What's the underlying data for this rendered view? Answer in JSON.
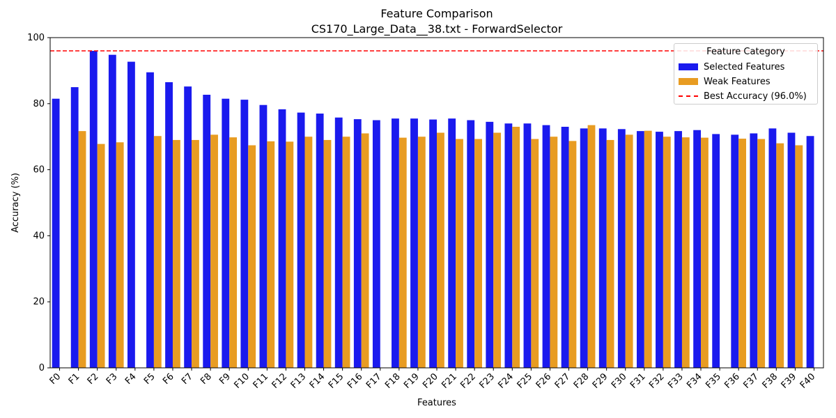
{
  "chart_data": {
    "type": "bar",
    "title": "Feature Comparison",
    "subtitle": "CS170_Large_Data__38.txt - ForwardSelector",
    "xlabel": "Features",
    "ylabel": "Accuracy (%)",
    "ylim": [
      0,
      100
    ],
    "yticks": [
      0,
      20,
      40,
      60,
      80,
      100
    ],
    "grid": false,
    "legend_position": "top-right",
    "legend_title": "Feature Category",
    "categories": [
      "F0",
      "F1",
      "F2",
      "F3",
      "F4",
      "F5",
      "F6",
      "F7",
      "F8",
      "F9",
      "F10",
      "F11",
      "F12",
      "F13",
      "F14",
      "F15",
      "F16",
      "F17",
      "F18",
      "F19",
      "F20",
      "F21",
      "F22",
      "F23",
      "F24",
      "F25",
      "F26",
      "F27",
      "F28",
      "F29",
      "F30",
      "F31",
      "F32",
      "F33",
      "F34",
      "F35",
      "F36",
      "F37",
      "F38",
      "F39",
      "F40"
    ],
    "series": [
      {
        "name": "Selected Features",
        "color": "#1a1aee",
        "values": [
          81.5,
          85.0,
          96.0,
          94.8,
          92.7,
          89.5,
          86.5,
          85.2,
          82.7,
          81.5,
          81.2,
          79.6,
          78.3,
          77.3,
          77.0,
          75.8,
          75.3,
          75.0,
          75.5,
          75.5,
          75.2,
          75.5,
          75.0,
          74.5,
          74.0,
          74.0,
          73.5,
          73.0,
          72.5,
          72.5,
          72.3,
          71.7,
          71.5,
          71.7,
          72.0,
          70.8,
          70.6,
          71.0,
          72.5,
          71.2,
          70.2
        ]
      },
      {
        "name": "Weak Features",
        "color": "#e89c22",
        "values": [
          null,
          71.7,
          67.8,
          68.3,
          null,
          70.2,
          69.0,
          69.0,
          70.6,
          69.8,
          67.4,
          68.6,
          68.5,
          70.0,
          69.0,
          70.0,
          71.0,
          null,
          69.7,
          70.0,
          71.2,
          69.3,
          69.3,
          71.2,
          73.0,
          69.3,
          70.0,
          68.7,
          73.5,
          69.0,
          70.6,
          71.8,
          70.0,
          69.8,
          69.7,
          null,
          69.4,
          69.3,
          68.0,
          67.4,
          null
        ]
      }
    ],
    "reference_line": {
      "name": "Best Accuracy (96.0%)",
      "value": 96.0,
      "color": "#ff0000",
      "style": "dashed"
    }
  }
}
